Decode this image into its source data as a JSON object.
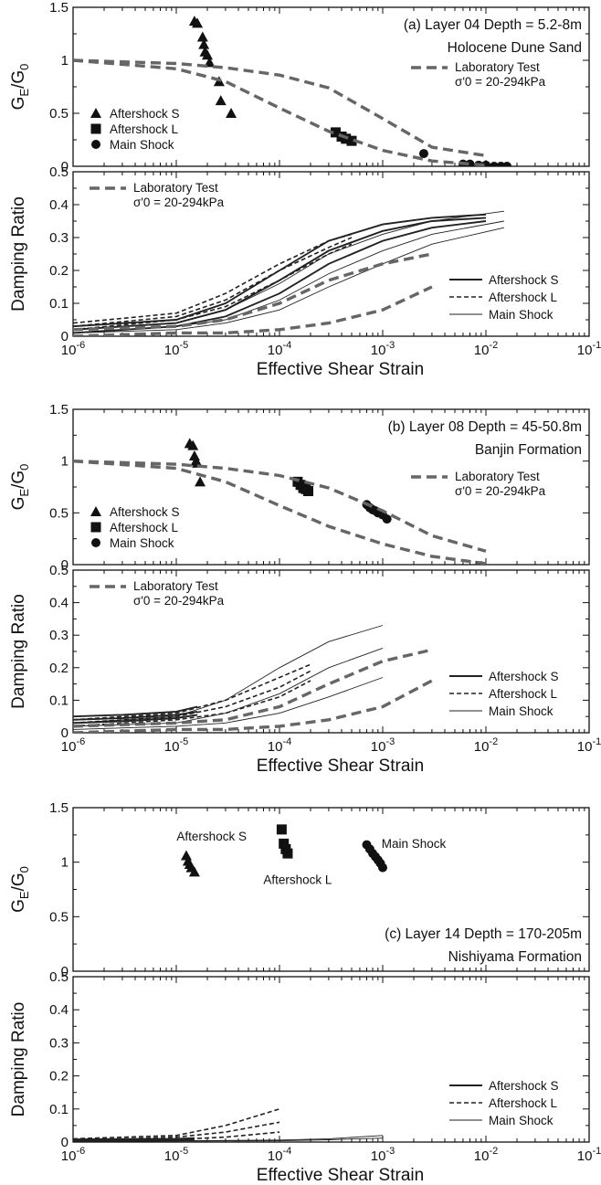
{
  "figure": {
    "shared_xlabel": "Effective Shear Strain",
    "colors": {
      "laboratory": "#666666",
      "markers": "#111111",
      "curves": "#222222"
    }
  },
  "chart_data": [
    {
      "id": "a-g",
      "type": "scatter",
      "panel_label": "(a) Layer 04  Depth = 5.2-8m",
      "subtitle": "Holocene Dune Sand",
      "ylabel": "GE/G0",
      "xlabel": "",
      "xscale": "log",
      "xlim": [
        1e-06,
        0.1
      ],
      "ylim": [
        0,
        1.5
      ],
      "yticks": [
        0,
        0.5,
        1,
        1.5
      ],
      "grid": false,
      "legend": {
        "placement": "bottom-left",
        "entries": [
          "Aftershock S",
          "Aftershock L",
          "Main Shock"
        ]
      },
      "lab_legend": {
        "placement": "top-right",
        "label": "Laboratory Test",
        "note": "σ'0 = 20-294kPa"
      },
      "series": [
        {
          "name": "Aftershock S",
          "marker": "triangle",
          "x": [
            1.5e-05,
            1.6e-05,
            1.8e-05,
            1.85e-05,
            1.9e-05,
            2e-05,
            2.1e-05,
            2.6e-05,
            2.7e-05,
            3.4e-05
          ],
          "y": [
            1.37,
            1.35,
            1.22,
            1.15,
            1.08,
            1.05,
            0.98,
            0.8,
            0.62,
            0.5
          ]
        },
        {
          "name": "Aftershock L",
          "marker": "square",
          "x": [
            0.00035,
            0.0004,
            0.00044,
            0.0005
          ],
          "y": [
            0.32,
            0.28,
            0.26,
            0.24
          ]
        },
        {
          "name": "Main Shock",
          "marker": "circle",
          "x": [
            0.0025,
            0.006,
            0.007,
            0.0085,
            0.01,
            0.012,
            0.014,
            0.016
          ],
          "y": [
            0.12,
            0.02,
            0.02,
            0.01,
            0.01,
            0.0,
            0.0,
            0.0
          ]
        },
        {
          "name": "Laboratory Test",
          "style": "lab",
          "x": [
            1e-06,
            1e-05,
            3e-05,
            0.0001,
            0.0003,
            0.001,
            0.003,
            0.01
          ],
          "y": [
            1.0,
            0.97,
            0.93,
            0.86,
            0.74,
            0.45,
            0.18,
            0.1
          ]
        },
        {
          "name": "Laboratory Test",
          "style": "lab",
          "x": [
            1e-06,
            1e-05,
            3e-05,
            0.0001,
            0.0003,
            0.001,
            0.003,
            0.01
          ],
          "y": [
            1.0,
            0.92,
            0.8,
            0.55,
            0.33,
            0.15,
            0.05,
            0.01
          ]
        }
      ]
    },
    {
      "id": "a-d",
      "type": "line",
      "ylabel": "Damping Ratio",
      "xlabel": "Effective Shear Strain",
      "xscale": "log",
      "xlim": [
        1e-06,
        0.1
      ],
      "ylim": [
        0,
        0.5
      ],
      "yticks": [
        0,
        0.1,
        0.2,
        0.3,
        0.4,
        0.5
      ],
      "grid": false,
      "legend": {
        "placement": "bottom-right",
        "entries": [
          "Aftershock S",
          "Aftershock L",
          "Main Shock"
        ]
      },
      "lab_legend": {
        "placement": "top-left",
        "label": "Laboratory Test",
        "note": "σ'0 = 20-294kPa"
      },
      "series": [
        {
          "name": "Aftershock S",
          "style": "solid",
          "x": [
            1e-06,
            1e-05,
            3e-05,
            0.0001,
            0.0003,
            0.001,
            0.003,
            0.01
          ],
          "y": [
            0.03,
            0.05,
            0.1,
            0.2,
            0.29,
            0.34,
            0.36,
            0.37
          ]
        },
        {
          "name": "Aftershock S",
          "style": "solid",
          "x": [
            1e-06,
            1e-05,
            3e-05,
            0.0001,
            0.0003,
            0.001,
            0.003,
            0.01
          ],
          "y": [
            0.02,
            0.04,
            0.08,
            0.17,
            0.26,
            0.32,
            0.35,
            0.36
          ]
        },
        {
          "name": "Aftershock S",
          "style": "solid",
          "x": [
            1e-06,
            1e-05,
            3e-05,
            0.0001,
            0.0003,
            0.001,
            0.003,
            0.01
          ],
          "y": [
            0.01,
            0.03,
            0.06,
            0.13,
            0.22,
            0.29,
            0.33,
            0.35
          ]
        },
        {
          "name": "Aftershock L",
          "style": "dashed",
          "x": [
            1e-06,
            1e-05,
            3e-05,
            0.0001,
            0.0003,
            0.0005
          ],
          "y": [
            0.04,
            0.07,
            0.13,
            0.22,
            0.29,
            0.31
          ]
        },
        {
          "name": "Aftershock L",
          "style": "dashed",
          "x": [
            1e-06,
            1e-05,
            3e-05,
            0.0001,
            0.0003,
            0.0005
          ],
          "y": [
            0.03,
            0.06,
            0.11,
            0.2,
            0.27,
            0.3
          ]
        },
        {
          "name": "Aftershock L",
          "style": "dashed",
          "x": [
            1e-06,
            1e-05,
            3e-05,
            0.0001,
            0.0003,
            0.0005
          ],
          "y": [
            0.02,
            0.05,
            0.09,
            0.17,
            0.25,
            0.28
          ]
        },
        {
          "name": "Main Shock",
          "style": "thin",
          "x": [
            1e-06,
            1e-05,
            3e-05,
            0.0001,
            0.0003,
            0.001,
            0.003,
            0.015
          ],
          "y": [
            0.02,
            0.04,
            0.08,
            0.16,
            0.25,
            0.31,
            0.35,
            0.38
          ]
        },
        {
          "name": "Main Shock",
          "style": "thin",
          "x": [
            1e-06,
            1e-05,
            3e-05,
            0.0001,
            0.0003,
            0.001,
            0.003,
            0.015
          ],
          "y": [
            0.01,
            0.03,
            0.05,
            0.11,
            0.19,
            0.26,
            0.31,
            0.35
          ]
        },
        {
          "name": "Main Shock",
          "style": "thin",
          "x": [
            1e-06,
            1e-05,
            3e-05,
            0.0001,
            0.0003,
            0.001,
            0.003,
            0.015
          ],
          "y": [
            0.01,
            0.02,
            0.04,
            0.08,
            0.15,
            0.22,
            0.28,
            0.33
          ]
        },
        {
          "name": "Laboratory Test",
          "style": "lab",
          "x": [
            1e-06,
            1e-05,
            3e-05,
            0.0001,
            0.0003,
            0.001,
            0.003
          ],
          "y": [
            0.02,
            0.03,
            0.05,
            0.1,
            0.17,
            0.22,
            0.25
          ]
        },
        {
          "name": "Laboratory Test",
          "style": "lab",
          "x": [
            1e-06,
            1e-05,
            3e-05,
            0.0001,
            0.0003,
            0.001,
            0.003
          ],
          "y": [
            0.0,
            0.01,
            0.01,
            0.02,
            0.04,
            0.08,
            0.15
          ]
        }
      ]
    },
    {
      "id": "b-g",
      "type": "scatter",
      "panel_label": "(b) Layer 08  Depth = 45-50.8m",
      "subtitle": "Banjin Formation",
      "ylabel": "GE/G0",
      "xlabel": "",
      "xscale": "log",
      "xlim": [
        1e-06,
        0.1
      ],
      "ylim": [
        0,
        1.5
      ],
      "yticks": [
        0,
        0.5,
        1,
        1.5
      ],
      "grid": false,
      "legend": {
        "placement": "bottom-left",
        "entries": [
          "Aftershock S",
          "Aftershock L",
          "Main Shock"
        ]
      },
      "lab_legend": {
        "placement": "right",
        "label": "Laboratory Test",
        "note": "σ'0 = 20-294kPa"
      },
      "series": [
        {
          "name": "Aftershock S",
          "marker": "triangle",
          "x": [
            1.35e-05,
            1.45e-05,
            1.5e-05,
            1.55e-05,
            1.6e-05,
            1.7e-05
          ],
          "y": [
            1.17,
            1.15,
            1.05,
            1.0,
            0.98,
            0.8
          ]
        },
        {
          "name": "Aftershock L",
          "marker": "square",
          "x": [
            0.00015,
            0.00016,
            0.00017,
            0.00018,
            0.00019
          ],
          "y": [
            0.8,
            0.77,
            0.74,
            0.73,
            0.71
          ]
        },
        {
          "name": "Main Shock",
          "marker": "circle",
          "x": [
            0.0007,
            0.00075,
            0.0008,
            0.00085,
            0.0009,
            0.001,
            0.0011
          ],
          "y": [
            0.58,
            0.55,
            0.53,
            0.52,
            0.5,
            0.48,
            0.44
          ]
        },
        {
          "name": "Laboratory Test",
          "style": "lab",
          "x": [
            1e-06,
            1e-05,
            3e-05,
            0.0001,
            0.0003,
            0.001,
            0.003,
            0.01
          ],
          "y": [
            1.0,
            0.97,
            0.93,
            0.86,
            0.74,
            0.52,
            0.28,
            0.13
          ]
        },
        {
          "name": "Laboratory Test",
          "style": "lab",
          "x": [
            1e-06,
            1e-05,
            3e-05,
            0.0001,
            0.0003,
            0.001,
            0.003,
            0.01
          ],
          "y": [
            1.0,
            0.93,
            0.8,
            0.57,
            0.37,
            0.2,
            0.08,
            0.01
          ]
        }
      ]
    },
    {
      "id": "b-d",
      "type": "line",
      "ylabel": "Damping Ratio",
      "xlabel": "Effective Shear Strain",
      "xscale": "log",
      "xlim": [
        1e-06,
        0.1
      ],
      "ylim": [
        0,
        0.5
      ],
      "yticks": [
        0,
        0.1,
        0.2,
        0.3,
        0.4,
        0.5
      ],
      "grid": false,
      "legend": {
        "placement": "bottom-right",
        "entries": [
          "Aftershock S",
          "Aftershock L",
          "Main Shock"
        ]
      },
      "lab_legend": {
        "placement": "top-left",
        "label": "Laboratory Test",
        "note": "σ'0 = 20-294kPa"
      },
      "series": [
        {
          "name": "Aftershock S",
          "style": "solid",
          "x": [
            1e-06,
            3e-06,
            1e-05,
            1.6e-05
          ],
          "y": [
            0.05,
            0.055,
            0.065,
            0.08
          ]
        },
        {
          "name": "Aftershock S",
          "style": "solid",
          "x": [
            1e-06,
            3e-06,
            1e-05,
            1.6e-05
          ],
          "y": [
            0.04,
            0.045,
            0.055,
            0.065
          ]
        },
        {
          "name": "Aftershock S",
          "style": "solid",
          "x": [
            1e-06,
            3e-06,
            1e-05,
            1.6e-05
          ],
          "y": [
            0.03,
            0.035,
            0.045,
            0.055
          ]
        },
        {
          "name": "Aftershock L",
          "style": "dashed",
          "x": [
            1e-06,
            1e-05,
            3e-05,
            0.0001,
            0.0002
          ],
          "y": [
            0.04,
            0.06,
            0.1,
            0.17,
            0.21
          ]
        },
        {
          "name": "Aftershock L",
          "style": "dashed",
          "x": [
            1e-06,
            1e-05,
            3e-05,
            0.0001,
            0.0002
          ],
          "y": [
            0.03,
            0.05,
            0.08,
            0.14,
            0.19
          ]
        },
        {
          "name": "Aftershock L",
          "style": "dashed",
          "x": [
            1e-06,
            1e-05,
            3e-05,
            0.0001,
            0.0002
          ],
          "y": [
            0.02,
            0.04,
            0.06,
            0.11,
            0.16
          ]
        },
        {
          "name": "Main Shock",
          "style": "thin",
          "x": [
            1e-06,
            1e-05,
            3e-05,
            0.0001,
            0.0003,
            0.001
          ],
          "y": [
            0.03,
            0.05,
            0.1,
            0.2,
            0.28,
            0.33
          ]
        },
        {
          "name": "Main Shock",
          "style": "thin",
          "x": [
            1e-06,
            1e-05,
            3e-05,
            0.0001,
            0.0003,
            0.001
          ],
          "y": [
            0.02,
            0.03,
            0.06,
            0.12,
            0.2,
            0.26
          ]
        },
        {
          "name": "Main Shock",
          "style": "thin",
          "x": [
            1e-06,
            1e-05,
            3e-05,
            0.0001,
            0.0003,
            0.001
          ],
          "y": [
            0.01,
            0.02,
            0.03,
            0.06,
            0.11,
            0.17
          ]
        },
        {
          "name": "Laboratory Test",
          "style": "lab",
          "x": [
            1e-06,
            1e-05,
            3e-05,
            0.0001,
            0.0003,
            0.001,
            0.003
          ],
          "y": [
            0.02,
            0.03,
            0.04,
            0.08,
            0.15,
            0.22,
            0.255
          ]
        },
        {
          "name": "Laboratory Test",
          "style": "lab",
          "x": [
            1e-06,
            1e-05,
            3e-05,
            0.0001,
            0.0003,
            0.001,
            0.003
          ],
          "y": [
            0.0,
            0.01,
            0.01,
            0.02,
            0.04,
            0.08,
            0.16
          ]
        }
      ]
    },
    {
      "id": "c-g",
      "type": "scatter",
      "panel_label": "(c) Layer 14  Depth = 170-205m",
      "subtitle": "Nishiyama Formation",
      "ylabel": "GE/G0",
      "xlabel": "",
      "xscale": "log",
      "xlim": [
        1e-06,
        0.1
      ],
      "ylim": [
        0,
        1.5
      ],
      "yticks": [
        0,
        0.5,
        1,
        1.5
      ],
      "grid": false,
      "annotations": [
        {
          "text": "Aftershock S",
          "x": 2.2e-05,
          "y": 1.2
        },
        {
          "text": "Aftershock L",
          "x": 0.00015,
          "y": 0.8
        },
        {
          "text": "Main Shock",
          "x": 0.002,
          "y": 1.13
        }
      ],
      "series": [
        {
          "name": "Aftershock S",
          "marker": "triangle",
          "x": [
            1.25e-05,
            1.3e-05,
            1.35e-05,
            1.4e-05,
            1.5e-05
          ],
          "y": [
            1.06,
            1.01,
            0.98,
            0.95,
            0.91
          ]
        },
        {
          "name": "Aftershock L",
          "marker": "square",
          "x": [
            0.000105,
            0.00011,
            0.000115,
            0.00012
          ],
          "y": [
            1.3,
            1.17,
            1.12,
            1.08
          ]
        },
        {
          "name": "Main Shock",
          "marker": "circle",
          "x": [
            0.0007,
            0.00075,
            0.0008,
            0.00085,
            0.0009,
            0.00095,
            0.001
          ],
          "y": [
            1.16,
            1.12,
            1.08,
            1.05,
            1.02,
            0.99,
            0.95
          ]
        }
      ]
    },
    {
      "id": "c-d",
      "type": "line",
      "ylabel": "Damping Ratio",
      "xlabel": "Effective Shear Strain",
      "xscale": "log",
      "xlim": [
        1e-06,
        0.1
      ],
      "ylim": [
        0,
        0.5
      ],
      "yticks": [
        0,
        0.1,
        0.2,
        0.3,
        0.4,
        0.5
      ],
      "grid": false,
      "legend": {
        "placement": "bottom-right",
        "entries": [
          "Aftershock S",
          "Aftershock L",
          "Main Shock"
        ]
      },
      "series": [
        {
          "name": "Aftershock S",
          "style": "solid",
          "x": [
            1e-06,
            3e-06,
            1e-05,
            1.5e-05
          ],
          "y": [
            0.008,
            0.009,
            0.01,
            0.012
          ]
        },
        {
          "name": "Aftershock S",
          "style": "solid",
          "x": [
            1e-06,
            3e-06,
            1e-05,
            1.5e-05
          ],
          "y": [
            0.004,
            0.005,
            0.006,
            0.007
          ]
        },
        {
          "name": "Aftershock L",
          "style": "dashed",
          "x": [
            1e-06,
            1e-05,
            3e-05,
            0.0001
          ],
          "y": [
            0.01,
            0.02,
            0.05,
            0.1
          ]
        },
        {
          "name": "Aftershock L",
          "style": "dashed",
          "x": [
            1e-06,
            1e-05,
            3e-05,
            0.0001
          ],
          "y": [
            0.005,
            0.015,
            0.03,
            0.06
          ]
        },
        {
          "name": "Aftershock L",
          "style": "dashed",
          "x": [
            1e-06,
            1e-05,
            3e-05,
            0.0001
          ],
          "y": [
            0.003,
            0.008,
            0.015,
            0.03
          ]
        },
        {
          "name": "Main Shock",
          "style": "thin",
          "x": [
            1e-06,
            1e-05,
            0.0001,
            0.0003,
            0.001
          ],
          "y": [
            0.003,
            0.004,
            0.006,
            0.01,
            0.02
          ]
        },
        {
          "name": "Main Shock",
          "style": "thin",
          "x": [
            1e-06,
            1e-05,
            0.0001,
            0.0003,
            0.001
          ],
          "y": [
            0.002,
            0.003,
            0.004,
            0.007,
            0.012
          ]
        }
      ]
    }
  ]
}
